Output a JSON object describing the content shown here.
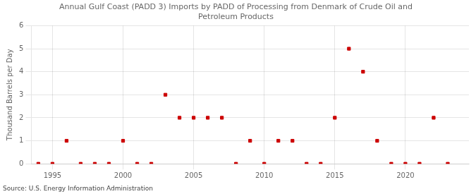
{
  "chart_data": {
    "type": "scatter",
    "title": "Annual Gulf Coast (PADD 3) Imports by PADD of Processing from Denmark of Crude Oil and\nPetroleum Products",
    "ylabel": "Thousand Barrels per Day",
    "annotations": [
      "Source: U.S. Energy Information Administration"
    ],
    "x": [
      1994,
      1995,
      1996,
      1997,
      1998,
      1999,
      2000,
      2001,
      2002,
      2003,
      2004,
      2005,
      2006,
      2007,
      2008,
      2009,
      2010,
      2011,
      2012,
      2013,
      2014,
      2015,
      2016,
      2017,
      2018,
      2019,
      2020,
      2021,
      2022,
      2023
    ],
    "values": [
      0,
      0,
      1,
      0,
      0,
      0,
      1,
      0,
      0,
      3,
      2,
      2,
      2,
      2,
      0,
      1,
      0,
      1,
      1,
      0,
      0,
      2,
      5,
      4,
      1,
      0,
      0,
      0,
      2,
      0
    ],
    "color": "#cc0000",
    "marker": "square",
    "xlim": [
      1993.5,
      2024.5
    ],
    "xticks": [
      1995,
      2000,
      2005,
      2010,
      2015,
      2020
    ],
    "ylim": [
      0,
      6
    ],
    "yticks": [
      0,
      1,
      2,
      3,
      4,
      5,
      6
    ],
    "grid": true
  }
}
